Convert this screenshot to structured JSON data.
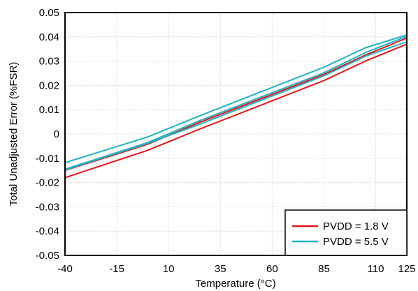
{
  "chart_data": {
    "type": "line",
    "xlabel": "Temperature (°C)",
    "ylabel": "Total Unadjusted Error (%FSR)",
    "xlim": [
      -40,
      125
    ],
    "ylim": [
      -0.05,
      0.05
    ],
    "x_ticks": [
      -40,
      -15,
      10,
      35,
      60,
      85,
      110,
      125
    ],
    "x_tick_labels": [
      "-40",
      "-15",
      "10",
      "35",
      "60",
      "85",
      "110",
      "125"
    ],
    "y_ticks": [
      -0.05,
      -0.04,
      -0.03,
      -0.02,
      -0.01,
      0,
      0.01,
      0.02,
      0.03,
      0.04,
      0.05
    ],
    "y_tick_labels": [
      "-0.05",
      "-0.04",
      "-0.03",
      "-0.02",
      "-0.01",
      "0",
      "0.01",
      "0.02",
      "0.03",
      "0.04",
      "0.05"
    ],
    "grid": true,
    "legend_position": "bottom-right",
    "legend": [
      {
        "label": "PVDD = 1.8 V",
        "color": "#e8141a"
      },
      {
        "label": "PVDD = 5.5 V",
        "color": "#1fb3c4"
      }
    ],
    "series": [
      {
        "name": "PVDD = 1.8 V",
        "color": "#e8141a",
        "x": [
          -40,
          0,
          25,
          85,
          105,
          125
        ],
        "y": [
          -0.018,
          -0.0067,
          0.002,
          0.022,
          0.03,
          0.037
        ]
      },
      {
        "name": "PVDD = 1.8 V",
        "color": "#e8141a",
        "x": [
          -40,
          0,
          25,
          85,
          105,
          125
        ],
        "y": [
          -0.015,
          -0.0042,
          0.0048,
          0.0245,
          0.0325,
          0.0395
        ]
      },
      {
        "name": "PVDD = 5.5 V",
        "color": "#1fb3c4",
        "x": [
          -40,
          0,
          25,
          85,
          105,
          125
        ],
        "y": [
          -0.0118,
          -0.0012,
          0.0075,
          0.0275,
          0.0355,
          0.0408
        ]
      },
      {
        "name": "PVDD = 5.5 V",
        "color": "#1fb3c4",
        "x": [
          -40,
          0,
          25,
          85,
          105,
          125
        ],
        "y": [
          -0.0148,
          -0.0038,
          0.004,
          0.024,
          0.032,
          0.038
        ]
      },
      {
        "name": "PVDD = 5.5 V",
        "color": "#1fb3c4",
        "x": [
          -40,
          0,
          25,
          85,
          105,
          125
        ],
        "y": [
          -0.0145,
          -0.0035,
          0.0055,
          0.0252,
          0.0335,
          0.0402
        ]
      }
    ]
  }
}
